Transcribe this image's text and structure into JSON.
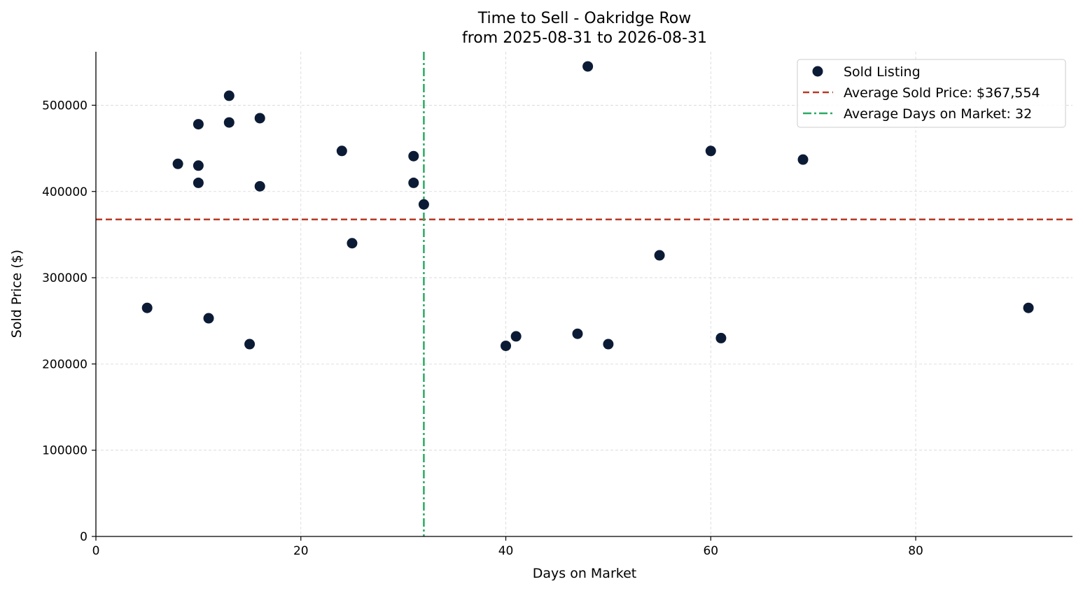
{
  "chart_data": {
    "type": "scatter",
    "title": "Time to Sell - Oakridge Row",
    "subtitle": "from 2025-08-31 to 2026-08-31",
    "xlabel": "Days on Market",
    "ylabel": "Sold Price ($)",
    "xlim": [
      0,
      95.3
    ],
    "ylim": [
      0,
      562000
    ],
    "xticks": [
      0,
      20,
      40,
      60,
      80
    ],
    "yticks": [
      0,
      100000,
      200000,
      300000,
      400000,
      500000
    ],
    "grid": true,
    "legend_position": "top-right",
    "series": [
      {
        "name": "Sold Listing",
        "color": "#0c1b35",
        "points": [
          {
            "x": 5,
            "y": 265000
          },
          {
            "x": 8,
            "y": 432000
          },
          {
            "x": 10,
            "y": 478000
          },
          {
            "x": 10,
            "y": 430000
          },
          {
            "x": 10,
            "y": 410000
          },
          {
            "x": 11,
            "y": 253000
          },
          {
            "x": 13,
            "y": 511000
          },
          {
            "x": 13,
            "y": 480000
          },
          {
            "x": 15,
            "y": 223000
          },
          {
            "x": 16,
            "y": 485000
          },
          {
            "x": 16,
            "y": 406000
          },
          {
            "x": 24,
            "y": 447000
          },
          {
            "x": 25,
            "y": 340000
          },
          {
            "x": 31,
            "y": 441000
          },
          {
            "x": 31,
            "y": 410000
          },
          {
            "x": 32,
            "y": 385000
          },
          {
            "x": 40,
            "y": 221000
          },
          {
            "x": 41,
            "y": 232000
          },
          {
            "x": 47,
            "y": 235000
          },
          {
            "x": 48,
            "y": 545000
          },
          {
            "x": 50,
            "y": 223000
          },
          {
            "x": 55,
            "y": 326000
          },
          {
            "x": 60,
            "y": 447000
          },
          {
            "x": 61,
            "y": 230000
          },
          {
            "x": 69,
            "y": 437000
          },
          {
            "x": 91,
            "y": 265000
          }
        ]
      }
    ],
    "reference_lines": [
      {
        "name": "Average Sold Price: $367,554",
        "orientation": "horizontal",
        "value": 367554,
        "color": "#b83a26",
        "style": "dashed"
      },
      {
        "name": "Average Days on Market: 32",
        "orientation": "vertical",
        "value": 32,
        "color": "#2aaa62",
        "style": "dashdot"
      }
    ]
  }
}
